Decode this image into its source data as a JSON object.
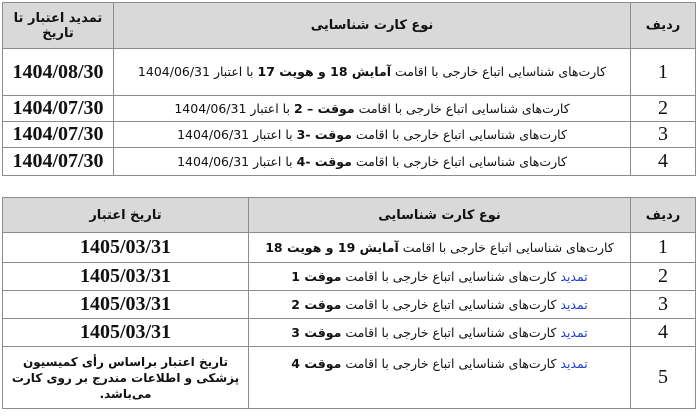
{
  "table1": {
    "headers": {
      "row": "ردیف",
      "type": "نوع کارت شناسایی",
      "date": "تمدید اعتبار تا تاریخ"
    },
    "rows": [
      {
        "num": "1",
        "pre": "",
        "text": "کارت‌های شناسایی اتباع خارجی با اقامت ",
        "bold": "آمایش 18 و هویت 17",
        "post": " با اعتبار 1404/06/31",
        "date": "1404/08/30"
      },
      {
        "num": "2",
        "pre": "",
        "text": "کارت‌های شناسایی اتباع خارجی با اقامت ",
        "bold": "موقت – 2",
        "post": " با اعتبار 1404/06/31",
        "date": "1404/07/30"
      },
      {
        "num": "3",
        "pre": "",
        "text": "کارت‌های شناسایی اتباع خارجی با اقامت ",
        "bold": "موقت -3",
        "post": " با اعتبار 1404/06/31",
        "date": "1404/07/30"
      },
      {
        "num": "4",
        "pre": "",
        "text": "کارت‌های شناسایی اتباع خارجی با اقامت ",
        "bold": "موقت -4",
        "post": " با اعتبار 1404/06/31",
        "date": "1404/07/30"
      }
    ]
  },
  "table2": {
    "headers": {
      "row": "ردیف",
      "type": "نوع کارت شناسایی",
      "date": "تاریخ اعتبار"
    },
    "rows": [
      {
        "num": "1",
        "pre": "",
        "text": "کارت‌های شناسایی اتباع خارجی با اقامت ",
        "bold": "آمایش 19 و هویت 18",
        "post": "",
        "date": "1405/03/31"
      },
      {
        "num": "2",
        "pre": "تمدید",
        "text": " کارت‌های شناسایی اتباع خارجی با اقامت ",
        "bold": "موقت 1",
        "post": "",
        "date": "1405/03/31"
      },
      {
        "num": "3",
        "pre": "تمدید",
        "text": " کارت‌های شناسایی اتباع خارجی با اقامت ",
        "bold": "موقت 2",
        "post": "",
        "date": "1405/03/31"
      },
      {
        "num": "4",
        "pre": "تمدید",
        "text": " کارت‌های شناسایی اتباع خارجی با اقامت ",
        "bold": "موقت 3",
        "post": "",
        "date": "1405/03/31"
      },
      {
        "num": "5",
        "pre": "تمدید",
        "text": " کارت‌های شناسایی اتباع خارجی با اقامت ",
        "bold": "موقت 4",
        "post": "",
        "date": "",
        "note": "تاریخ اعتبار براساس رأی کمیسیون پزشکی و اطلاعات مندرج بر روی کارت می‌باشد."
      }
    ]
  },
  "colors": {
    "header_bg": "#d9d9d9",
    "link_blue": "#1f3fd6",
    "border": "#8c8c8c"
  }
}
